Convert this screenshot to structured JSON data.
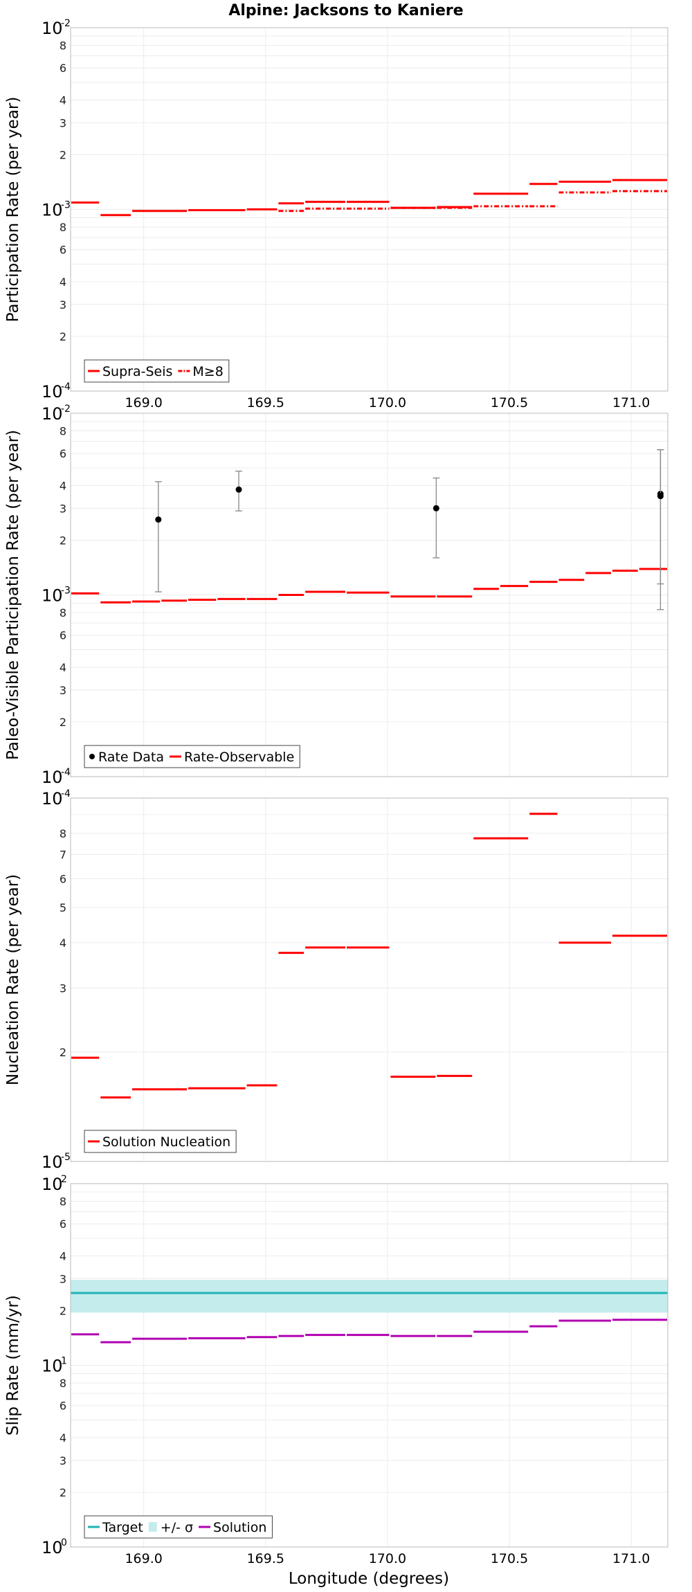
{
  "title": "Alpine: Jacksons to Kaniere",
  "xlabel": "Longitude (degrees)",
  "colors": {
    "red": "#ff0000",
    "magenta": "#b000b0",
    "cyan": "#1fb5b5",
    "band": "#c4ecec",
    "grid": "#ececec",
    "frame": "#b8b8b8",
    "errorbar": "#888888",
    "point": "#000000"
  },
  "chart_data": [
    {
      "type": "line",
      "ylabel": "Participation Rate (per year)",
      "xlim": [
        168.7,
        171.15
      ],
      "ylim": [
        0.0001,
        0.01
      ],
      "xticks": [
        169.0,
        169.5,
        170.0,
        170.5,
        171.0
      ],
      "xtick_labels": [
        "169.0",
        "169.5",
        "170.0",
        "170.5",
        "171.0"
      ],
      "yaxis_labels": [
        {
          "v": 0.01,
          "base": "10",
          "exp": "-2"
        },
        {
          "v": 0.008,
          "t": "8"
        },
        {
          "v": 0.006,
          "t": "6"
        },
        {
          "v": 0.004,
          "t": "4"
        },
        {
          "v": 0.003,
          "t": "3"
        },
        {
          "v": 0.002,
          "t": "2"
        },
        {
          "v": 0.001,
          "base": "10",
          "exp": "-3"
        },
        {
          "v": 0.0008,
          "t": "8"
        },
        {
          "v": 0.0006,
          "t": "6"
        },
        {
          "v": 0.0004,
          "t": "4"
        },
        {
          "v": 0.0003,
          "t": "3"
        },
        {
          "v": 0.0002,
          "t": "2"
        },
        {
          "v": 0.0001,
          "base": "10",
          "exp": "-4"
        }
      ],
      "series": [
        {
          "name": "Supra-Seis",
          "style": "solid",
          "color": "red",
          "segments": [
            [
              168.7,
              168.82,
              0.00109
            ],
            [
              168.82,
              168.95,
              0.00093
            ],
            [
              168.95,
              169.18,
              0.00098
            ],
            [
              169.18,
              169.42,
              0.00099
            ],
            [
              169.42,
              169.55,
              0.001
            ],
            [
              169.55,
              169.66,
              0.00108
            ],
            [
              169.66,
              169.83,
              0.0011
            ],
            [
              169.83,
              170.01,
              0.0011
            ],
            [
              170.01,
              170.2,
              0.00102
            ],
            [
              170.2,
              170.35,
              0.00103
            ],
            [
              170.35,
              170.58,
              0.00122
            ],
            [
              170.58,
              170.7,
              0.00138
            ],
            [
              170.7,
              170.92,
              0.00142
            ],
            [
              170.92,
              171.15,
              0.00145
            ]
          ]
        },
        {
          "name": "M≥8",
          "style": "dashdot",
          "color": "red",
          "segments": [
            [
              169.55,
              169.66,
              0.00098
            ],
            [
              169.66,
              169.83,
              0.00101
            ],
            [
              169.83,
              170.01,
              0.00101
            ],
            [
              170.01,
              170.2,
              0.00102
            ],
            [
              170.2,
              170.35,
              0.00102
            ],
            [
              170.35,
              170.58,
              0.00104
            ],
            [
              170.58,
              170.7,
              0.00104
            ],
            [
              170.7,
              170.92,
              0.00124
            ],
            [
              170.92,
              171.15,
              0.00126
            ]
          ]
        }
      ],
      "legend": [
        {
          "label": "Supra-Seis",
          "kind": "solid",
          "color": "red"
        },
        {
          "label": "M≥8",
          "kind": "dashdot",
          "color": "red"
        }
      ]
    },
    {
      "type": "line",
      "ylabel": "Paleo-Visible Participation Rate (per year)",
      "xlim": [
        168.7,
        171.15
      ],
      "ylim": [
        0.0001,
        0.01
      ],
      "xticks": [
        169.0,
        169.5,
        170.0,
        170.5,
        171.0
      ],
      "yaxis_labels": [
        {
          "v": 0.01,
          "base": "10",
          "exp": "-2"
        },
        {
          "v": 0.008,
          "t": "8"
        },
        {
          "v": 0.006,
          "t": "6"
        },
        {
          "v": 0.004,
          "t": "4"
        },
        {
          "v": 0.003,
          "t": "3"
        },
        {
          "v": 0.002,
          "t": "2"
        },
        {
          "v": 0.001,
          "base": "10",
          "exp": "-3"
        },
        {
          "v": 0.0008,
          "t": "8"
        },
        {
          "v": 0.0006,
          "t": "6"
        },
        {
          "v": 0.0004,
          "t": "4"
        },
        {
          "v": 0.0003,
          "t": "3"
        },
        {
          "v": 0.0002,
          "t": "2"
        },
        {
          "v": 0.0001,
          "base": "10",
          "exp": "-4"
        }
      ],
      "series": [
        {
          "name": "Rate-Observable",
          "style": "solid",
          "color": "red",
          "segments": [
            [
              168.7,
              168.82,
              0.00102
            ],
            [
              168.82,
              168.95,
              0.00091
            ],
            [
              168.95,
              169.07,
              0.00092
            ],
            [
              169.07,
              169.18,
              0.00093
            ],
            [
              169.18,
              169.3,
              0.00094
            ],
            [
              169.3,
              169.42,
              0.00095
            ],
            [
              169.42,
              169.55,
              0.00095
            ],
            [
              169.55,
              169.66,
              0.001
            ],
            [
              169.66,
              169.83,
              0.00104
            ],
            [
              169.83,
              170.01,
              0.00103
            ],
            [
              170.01,
              170.2,
              0.00098
            ],
            [
              170.2,
              170.35,
              0.00098
            ],
            [
              170.35,
              170.46,
              0.00108
            ],
            [
              170.46,
              170.58,
              0.00112
            ],
            [
              170.58,
              170.7,
              0.00118
            ],
            [
              170.7,
              170.81,
              0.00121
            ],
            [
              170.81,
              170.92,
              0.00132
            ],
            [
              170.92,
              171.03,
              0.00136
            ],
            [
              171.03,
              171.15,
              0.00139
            ]
          ]
        }
      ],
      "points": [
        {
          "x": 169.06,
          "y": 0.0026,
          "lo": 0.00104,
          "hi": 0.0042
        },
        {
          "x": 169.39,
          "y": 0.0038,
          "lo": 0.0029,
          "hi": 0.0048
        },
        {
          "x": 170.2,
          "y": 0.003,
          "lo": 0.0016,
          "hi": 0.0044
        },
        {
          "x": 171.12,
          "y": 0.0036,
          "lo": 0.00083,
          "hi": 0.0063
        },
        {
          "x": 171.12,
          "y": 0.0035,
          "lo": 0.00115,
          "hi": 0.0063
        }
      ],
      "legend": [
        {
          "label": "Rate Data",
          "kind": "dot",
          "color": "point"
        },
        {
          "label": "Rate-Observable",
          "kind": "solid",
          "color": "red"
        }
      ]
    },
    {
      "type": "line",
      "ylabel": "Nucleation Rate (per year)",
      "xlim": [
        168.7,
        171.15
      ],
      "ylim": [
        1e-05,
        0.0001
      ],
      "xticks": [
        169.0,
        169.5,
        170.0,
        170.5,
        171.0
      ],
      "yaxis_labels": [
        {
          "v": 0.0001,
          "base": "10",
          "exp": "-4"
        },
        {
          "v": 8e-05,
          "t": "8"
        },
        {
          "v": 7e-05,
          "t": "7"
        },
        {
          "v": 6e-05,
          "t": "6"
        },
        {
          "v": 5e-05,
          "t": "5"
        },
        {
          "v": 4e-05,
          "t": "4"
        },
        {
          "v": 3e-05,
          "t": "3"
        },
        {
          "v": 2e-05,
          "t": "2"
        },
        {
          "v": 1e-05,
          "base": "10",
          "exp": "-5"
        }
      ],
      "series": [
        {
          "name": "Solution Nucleation",
          "style": "solid",
          "color": "red",
          "segments": [
            [
              168.7,
              168.82,
              1.93e-05
            ],
            [
              168.82,
              168.95,
              1.5e-05
            ],
            [
              168.95,
              169.18,
              1.58e-05
            ],
            [
              169.18,
              169.42,
              1.59e-05
            ],
            [
              169.42,
              169.55,
              1.62e-05
            ],
            [
              169.55,
              169.66,
              3.75e-05
            ],
            [
              169.66,
              169.83,
              3.88e-05
            ],
            [
              169.83,
              170.01,
              3.88e-05
            ],
            [
              170.01,
              170.2,
              1.71e-05
            ],
            [
              170.2,
              170.35,
              1.72e-05
            ],
            [
              170.35,
              170.58,
              7.75e-05
            ],
            [
              170.58,
              170.7,
              9.05e-05
            ],
            [
              170.7,
              170.92,
              4e-05
            ],
            [
              170.92,
              171.15,
              4.18e-05
            ]
          ]
        }
      ],
      "legend": [
        {
          "label": "Solution Nucleation",
          "kind": "solid",
          "color": "red"
        }
      ]
    },
    {
      "type": "line",
      "ylabel": "Slip Rate (mm/yr)",
      "xlim": [
        168.7,
        171.15
      ],
      "ylim": [
        1,
        100
      ],
      "xticks": [
        169.0,
        169.5,
        170.0,
        170.5,
        171.0
      ],
      "yaxis_labels": [
        {
          "v": 100,
          "base": "10",
          "exp": "2"
        },
        {
          "v": 80,
          "t": "8"
        },
        {
          "v": 60,
          "t": "6"
        },
        {
          "v": 40,
          "t": "4"
        },
        {
          "v": 30,
          "t": "3"
        },
        {
          "v": 20,
          "t": "2"
        },
        {
          "v": 10,
          "base": "10",
          "exp": "1"
        },
        {
          "v": 8,
          "t": "8"
        },
        {
          "v": 6,
          "t": "6"
        },
        {
          "v": 4,
          "t": "4"
        },
        {
          "v": 3,
          "t": "3"
        },
        {
          "v": 2,
          "t": "2"
        },
        {
          "v": 1,
          "base": "10",
          "exp": "0"
        }
      ],
      "band": {
        "lo": 19.5,
        "hi": 29.5
      },
      "target": 25,
      "series": [
        {
          "name": "Solution",
          "style": "solid",
          "color": "magenta",
          "segments": [
            [
              168.7,
              168.82,
              14.8
            ],
            [
              168.82,
              168.95,
              13.4
            ],
            [
              168.95,
              169.18,
              14.0
            ],
            [
              169.18,
              169.42,
              14.1
            ],
            [
              169.42,
              169.55,
              14.3
            ],
            [
              169.55,
              169.66,
              14.5
            ],
            [
              169.66,
              169.83,
              14.7
            ],
            [
              169.83,
              170.01,
              14.7
            ],
            [
              170.01,
              170.2,
              14.5
            ],
            [
              170.2,
              170.35,
              14.5
            ],
            [
              170.35,
              170.58,
              15.3
            ],
            [
              170.58,
              170.7,
              16.4
            ],
            [
              170.7,
              170.92,
              17.6
            ],
            [
              170.92,
              171.15,
              17.8
            ]
          ]
        }
      ],
      "legend": [
        {
          "label": "Target",
          "kind": "solid",
          "color": "cyan"
        },
        {
          "label": "+/- σ",
          "kind": "band",
          "color": "band"
        },
        {
          "label": "Solution",
          "kind": "solid",
          "color": "magenta"
        }
      ]
    }
  ]
}
